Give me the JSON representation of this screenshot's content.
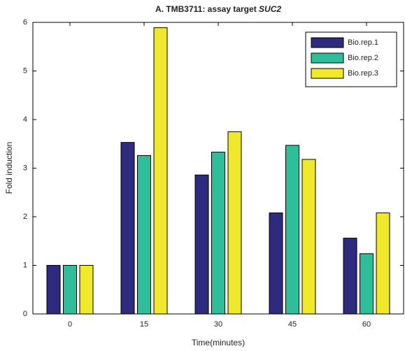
{
  "chart_data": {
    "type": "bar",
    "title": "A. TMB3711: assay target SUC2",
    "x_label": "Time(minutes)",
    "y_label": "Fold induction",
    "categories": [
      "0",
      "15",
      "30",
      "45",
      "60"
    ],
    "series": [
      {
        "name": "Bio.rep.1",
        "color": "#2e2a7e",
        "values": [
          1,
          3.53,
          2.86,
          2.08,
          1.56
        ]
      },
      {
        "name": "Bio.rep.2",
        "color": "#2ebf9a",
        "values": [
          1,
          3.26,
          3.33,
          3.47,
          1.24
        ]
      },
      {
        "name": "Bio.rep.3",
        "color": "#f0e82a",
        "values": [
          1,
          5.89,
          3.75,
          3.18,
          2.08
        ]
      }
    ],
    "ylim": [
      0,
      6
    ],
    "yticks": [
      0,
      1,
      2,
      3,
      4,
      5,
      6
    ],
    "legend": "upper right",
    "grid": false
  }
}
